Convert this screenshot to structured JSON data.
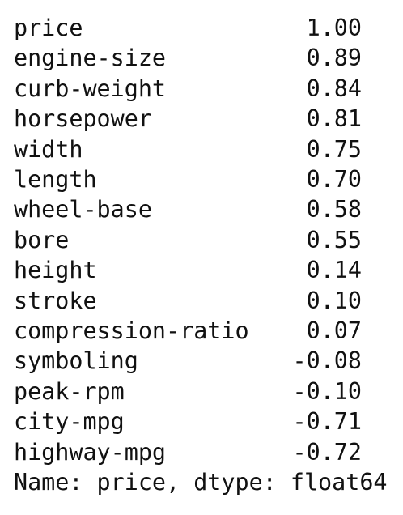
{
  "rows": [
    [
      "price",
      "1.00"
    ],
    [
      "engine-size",
      "0.89"
    ],
    [
      "curb-weight",
      "0.84"
    ],
    [
      "horsepower",
      "0.81"
    ],
    [
      "width",
      "0.75"
    ],
    [
      "length",
      "0.70"
    ],
    [
      "wheel-base",
      "0.58"
    ],
    [
      "bore",
      "0.55"
    ],
    [
      "height",
      "0.14"
    ],
    [
      "stroke",
      "0.10"
    ],
    [
      "compression-ratio",
      "0.07"
    ],
    [
      "symboling",
      "-0.08"
    ],
    [
      "peak-rpm",
      "-0.10"
    ],
    [
      "city-mpg",
      "-0.71"
    ],
    [
      "highway-mpg",
      "-0.72"
    ]
  ],
  "footer": "Name: price, dtype: float64"
}
